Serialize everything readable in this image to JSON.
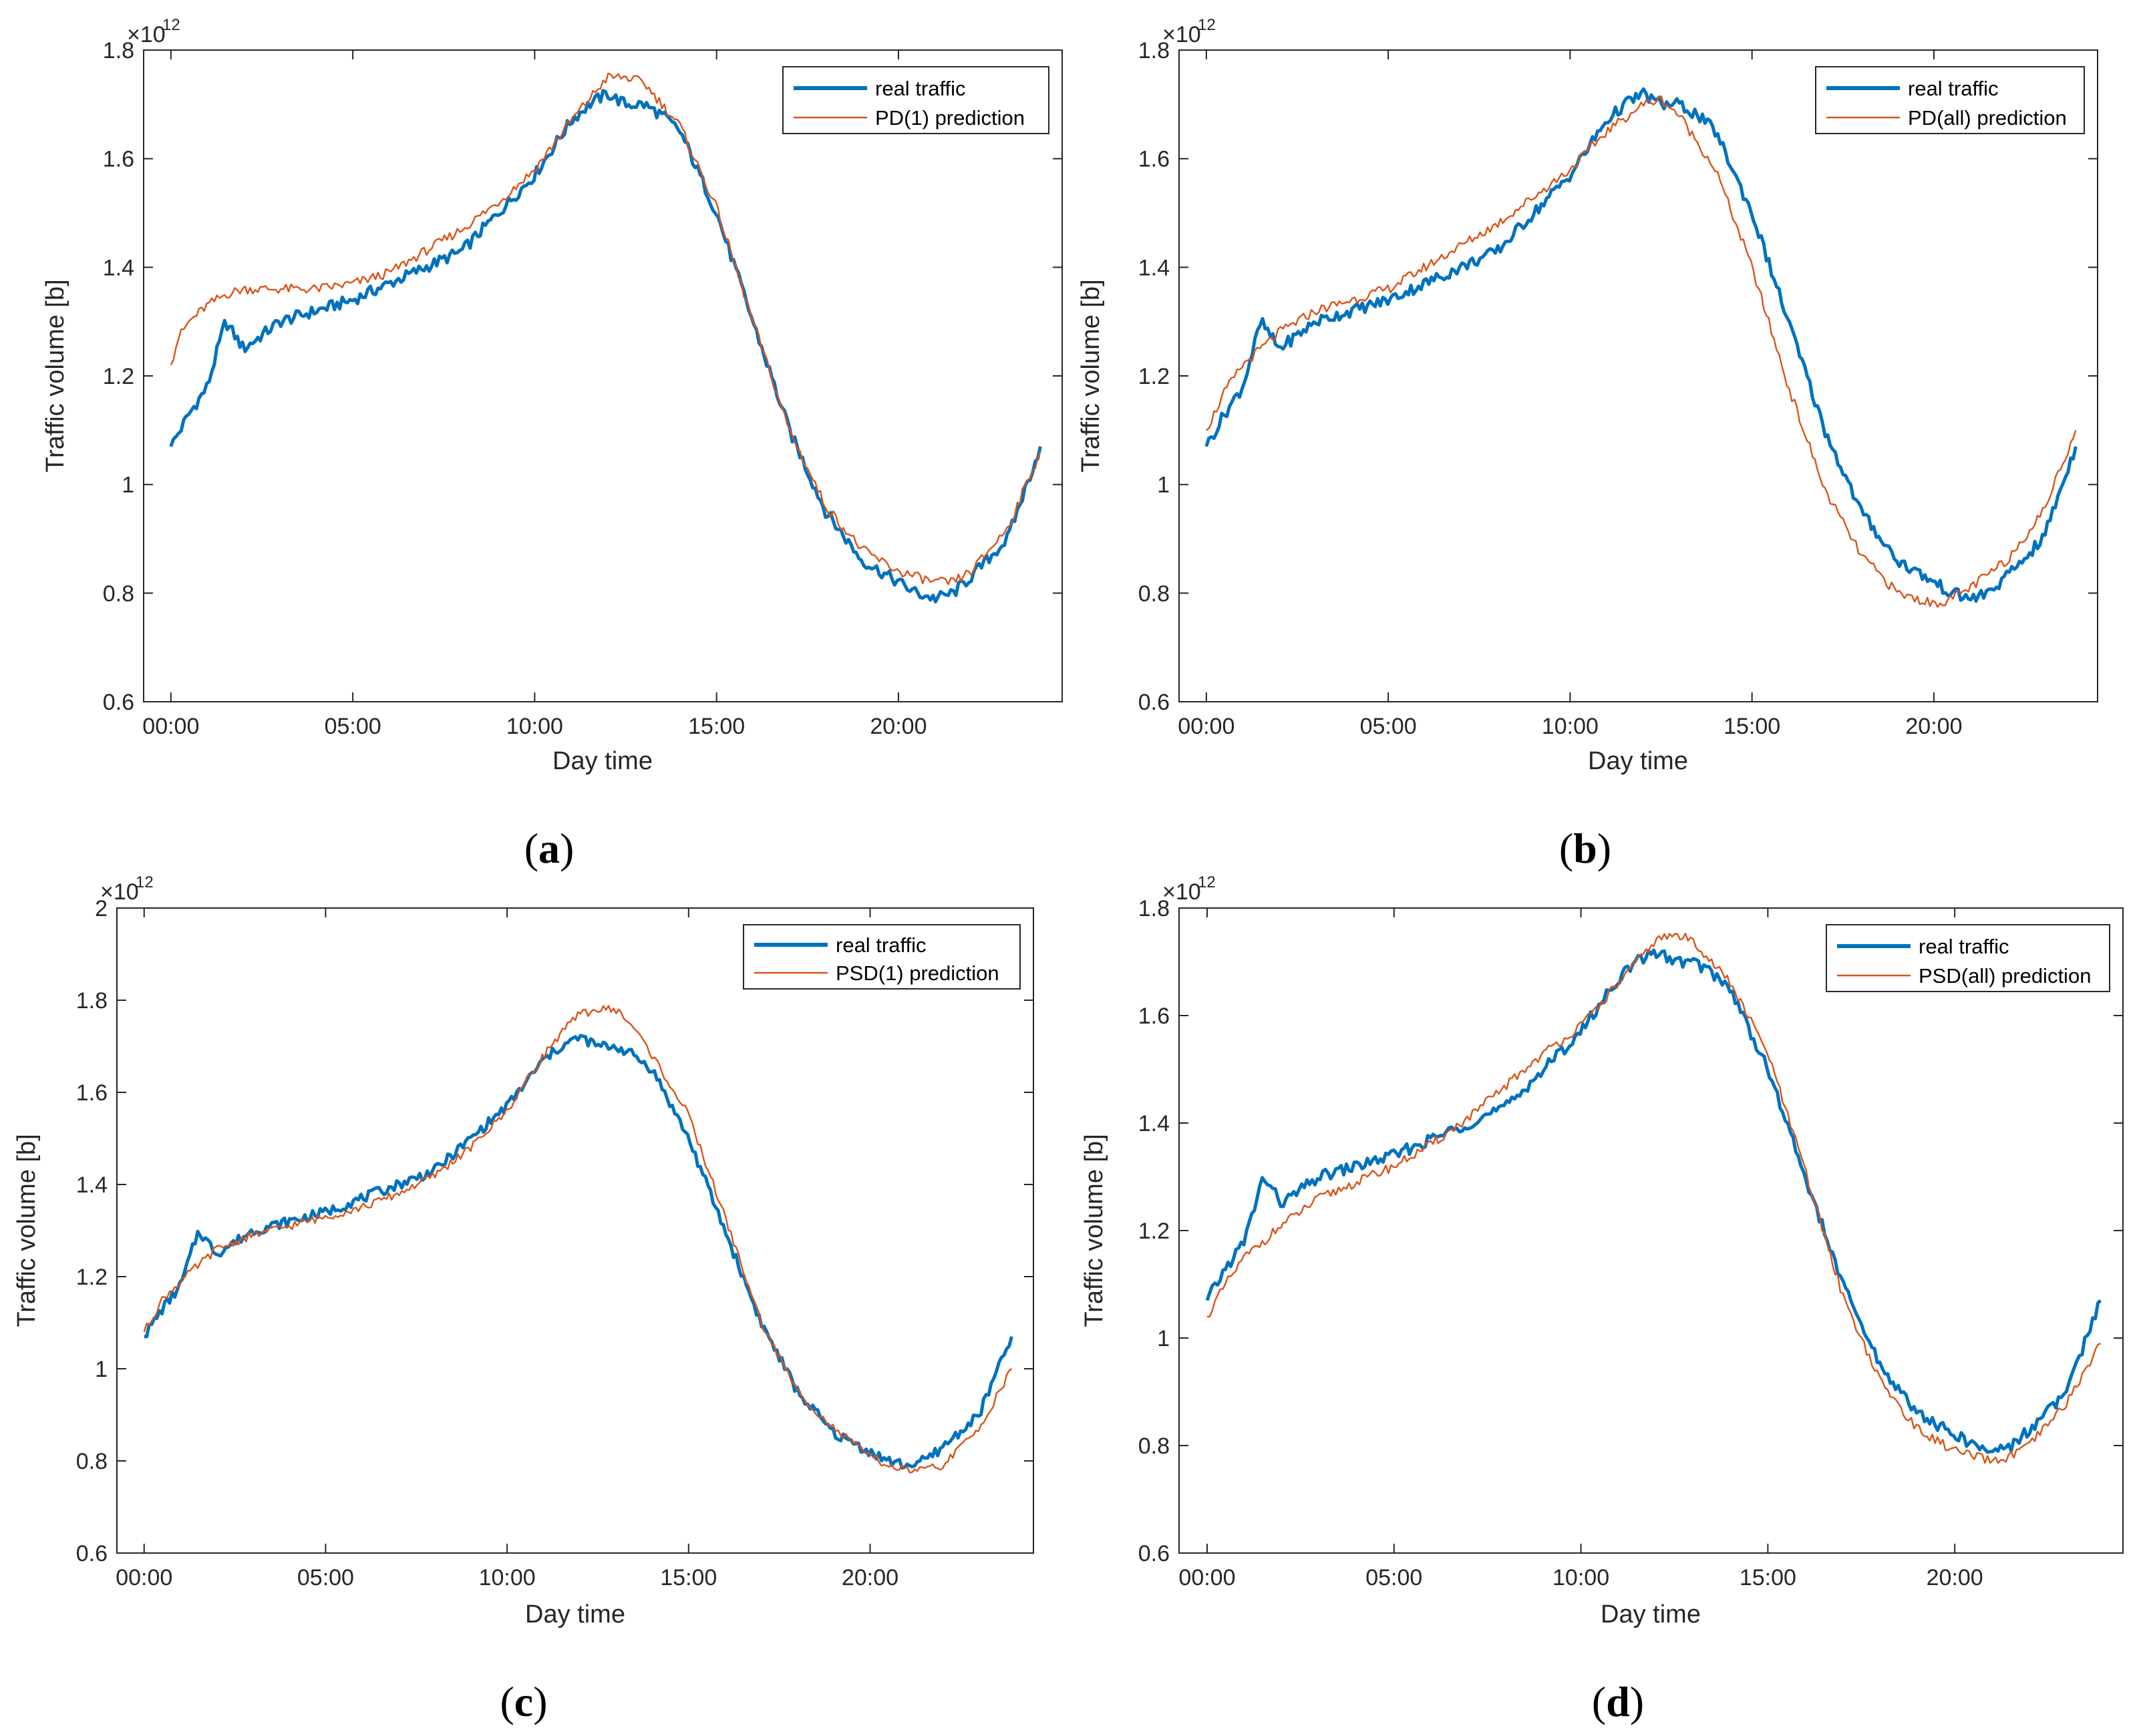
{
  "colors": {
    "real": "#0072BD",
    "prediction": "#D95319"
  },
  "chart_data": [
    {
      "type": "line",
      "panel_label": "a",
      "xlabel": "Day time",
      "ylabel": "Traffic volume [b]",
      "exponent_base": "×10",
      "exponent_power": "12",
      "xlim": [
        -0.75,
        24.5
      ],
      "ylim": [
        0.6,
        1.8
      ],
      "xticks": [
        0,
        5,
        10,
        15,
        20
      ],
      "xtick_labels": [
        "00:00",
        "05:00",
        "10:00",
        "15:00",
        "20:00"
      ],
      "yticks": [
        0.6,
        0.8,
        1,
        1.2,
        1.4,
        1.6,
        1.8
      ],
      "ytick_labels": [
        "0.6",
        "0.8",
        "1",
        "1.2",
        "1.4",
        "1.6",
        "1.8"
      ],
      "legend_position": "top-right",
      "series": [
        {
          "name": "real traffic",
          "role": "real",
          "x": [
            0,
            0.5,
            1,
            1.5,
            2,
            3,
            4,
            5,
            6,
            7,
            8,
            9,
            10,
            11,
            11.5,
            12,
            12.5,
            13,
            13.5,
            14,
            15,
            16,
            17,
            18,
            19,
            20,
            20.5,
            21,
            21.5,
            22,
            23,
            23.9
          ],
          "y": [
            1.07,
            1.13,
            1.18,
            1.3,
            1.25,
            1.3,
            1.32,
            1.34,
            1.37,
            1.4,
            1.43,
            1.5,
            1.57,
            1.67,
            1.7,
            1.72,
            1.7,
            1.7,
            1.68,
            1.65,
            1.5,
            1.3,
            1.1,
            0.95,
            0.86,
            0.82,
            0.8,
            0.79,
            0.8,
            0.83,
            0.9,
            1.07
          ]
        },
        {
          "name": "PD(1) prediction",
          "role": "prediction",
          "x": [
            0,
            0.2,
            0.5,
            1,
            1.5,
            2,
            3,
            4,
            5,
            6,
            7,
            8,
            9,
            10,
            11,
            11.5,
            12,
            12.5,
            13,
            13.5,
            14,
            15,
            16,
            17,
            18,
            19,
            20,
            20.5,
            21,
            21.5,
            22,
            23,
            23.9
          ],
          "y": [
            1.22,
            1.27,
            1.3,
            1.33,
            1.35,
            1.36,
            1.36,
            1.36,
            1.37,
            1.39,
            1.43,
            1.47,
            1.52,
            1.58,
            1.67,
            1.71,
            1.75,
            1.75,
            1.74,
            1.7,
            1.66,
            1.51,
            1.3,
            1.1,
            0.96,
            0.88,
            0.84,
            0.83,
            0.82,
            0.82,
            0.84,
            0.92,
            1.06
          ]
        }
      ]
    },
    {
      "type": "line",
      "panel_label": "b",
      "xlabel": "Day time",
      "ylabel": "Traffic volume [b]",
      "exponent_base": "×10",
      "exponent_power": "12",
      "xlim": [
        -0.75,
        24.5
      ],
      "ylim": [
        0.6,
        1.8
      ],
      "xticks": [
        0,
        5,
        10,
        15,
        20
      ],
      "xtick_labels": [
        "00:00",
        "05:00",
        "10:00",
        "15:00",
        "20:00"
      ],
      "yticks": [
        0.6,
        0.8,
        1,
        1.2,
        1.4,
        1.6,
        1.8
      ],
      "ytick_labels": [
        "0.6",
        "0.8",
        "1",
        "1.2",
        "1.4",
        "1.6",
        "1.8"
      ],
      "legend_position": "top-right",
      "series": [
        {
          "name": "real traffic",
          "role": "real",
          "x": [
            0,
            0.5,
            1,
            1.5,
            2,
            3,
            4,
            5,
            6,
            7,
            8,
            9,
            10,
            11,
            11.5,
            12,
            12.5,
            13,
            13.5,
            14,
            15,
            16,
            17,
            18,
            19,
            20,
            20.5,
            21,
            21.5,
            22,
            23,
            23.9
          ],
          "y": [
            1.07,
            1.13,
            1.18,
            1.3,
            1.25,
            1.3,
            1.32,
            1.34,
            1.37,
            1.4,
            1.43,
            1.5,
            1.57,
            1.67,
            1.7,
            1.72,
            1.7,
            1.7,
            1.68,
            1.65,
            1.5,
            1.3,
            1.1,
            0.95,
            0.86,
            0.82,
            0.8,
            0.79,
            0.8,
            0.83,
            0.9,
            1.07
          ]
        },
        {
          "name": "PD(all) prediction",
          "role": "prediction",
          "x": [
            0,
            0.5,
            1,
            2,
            3,
            4,
            5,
            6,
            7,
            8,
            9,
            10,
            11,
            12,
            12.5,
            13,
            14,
            15,
            16,
            17,
            18,
            19,
            20,
            20.5,
            21,
            22,
            23,
            23.9
          ],
          "y": [
            1.1,
            1.17,
            1.22,
            1.28,
            1.32,
            1.34,
            1.36,
            1.4,
            1.44,
            1.48,
            1.53,
            1.58,
            1.65,
            1.7,
            1.71,
            1.68,
            1.58,
            1.4,
            1.18,
            0.99,
            0.87,
            0.8,
            0.78,
            0.79,
            0.81,
            0.86,
            0.95,
            1.1
          ]
        }
      ]
    },
    {
      "type": "line",
      "panel_label": "c",
      "xlabel": "Day time",
      "ylabel": "Traffic volume [b]",
      "exponent_base": "×10",
      "exponent_power": "12",
      "xlim": [
        -0.75,
        24.5
      ],
      "ylim": [
        0.6,
        2.0
      ],
      "xticks": [
        0,
        5,
        10,
        15,
        20
      ],
      "xtick_labels": [
        "00:00",
        "05:00",
        "10:00",
        "15:00",
        "20:00"
      ],
      "yticks": [
        0.6,
        0.8,
        1,
        1.2,
        1.4,
        1.6,
        1.8,
        2
      ],
      "ytick_labels": [
        "0.6",
        "0.8",
        "1",
        "1.2",
        "1.4",
        "1.6",
        "1.8",
        "2"
      ],
      "legend_position": "top-right",
      "series": [
        {
          "name": "real traffic",
          "role": "real",
          "x": [
            0,
            0.5,
            1,
            1.5,
            2,
            3,
            4,
            5,
            6,
            7,
            8,
            9,
            10,
            11,
            11.5,
            12,
            12.5,
            13,
            13.5,
            14,
            15,
            16,
            17,
            18,
            19,
            20,
            20.5,
            21,
            21.5,
            22,
            23,
            23.9
          ],
          "y": [
            1.07,
            1.13,
            1.18,
            1.3,
            1.25,
            1.3,
            1.32,
            1.34,
            1.37,
            1.4,
            1.43,
            1.5,
            1.57,
            1.67,
            1.7,
            1.72,
            1.7,
            1.7,
            1.68,
            1.65,
            1.5,
            1.3,
            1.1,
            0.95,
            0.86,
            0.82,
            0.8,
            0.79,
            0.8,
            0.83,
            0.9,
            1.07
          ]
        },
        {
          "name": "PSD(1) prediction",
          "role": "prediction",
          "x": [
            0,
            0.5,
            1,
            2,
            3,
            4,
            5,
            6,
            7,
            8,
            9,
            10,
            11,
            11.5,
            12,
            12.5,
            13,
            13.5,
            14,
            15,
            16,
            17,
            18,
            19,
            20,
            20.5,
            21,
            21.5,
            22,
            23,
            23.9
          ],
          "y": [
            1.08,
            1.15,
            1.19,
            1.26,
            1.29,
            1.31,
            1.33,
            1.35,
            1.38,
            1.42,
            1.48,
            1.56,
            1.68,
            1.73,
            1.77,
            1.78,
            1.78,
            1.74,
            1.68,
            1.55,
            1.33,
            1.1,
            0.95,
            0.87,
            0.81,
            0.79,
            0.78,
            0.78,
            0.79,
            0.87,
            1.0
          ]
        }
      ]
    },
    {
      "type": "line",
      "panel_label": "d",
      "xlabel": "Day time",
      "ylabel": "Traffic volume [b]",
      "exponent_base": "×10",
      "exponent_power": "12",
      "xlim": [
        -0.75,
        24.5
      ],
      "ylim": [
        0.6,
        1.8
      ],
      "xticks": [
        0,
        5,
        10,
        15,
        20
      ],
      "xtick_labels": [
        "00:00",
        "05:00",
        "10:00",
        "15:00",
        "20:00"
      ],
      "yticks": [
        0.6,
        0.8,
        1,
        1.2,
        1.4,
        1.6,
        1.8
      ],
      "ytick_labels": [
        "0.6",
        "0.8",
        "1",
        "1.2",
        "1.4",
        "1.6",
        "1.8"
      ],
      "legend_position": "top-right",
      "series": [
        {
          "name": "real traffic",
          "role": "real",
          "x": [
            0,
            0.5,
            1,
            1.5,
            2,
            3,
            4,
            5,
            6,
            7,
            8,
            9,
            10,
            11,
            11.5,
            12,
            12.5,
            13,
            13.5,
            14,
            15,
            16,
            17,
            18,
            19,
            20,
            20.5,
            21,
            21.5,
            22,
            23,
            23.9
          ],
          "y": [
            1.07,
            1.13,
            1.18,
            1.3,
            1.25,
            1.3,
            1.32,
            1.34,
            1.37,
            1.4,
            1.43,
            1.5,
            1.57,
            1.67,
            1.7,
            1.72,
            1.7,
            1.7,
            1.68,
            1.65,
            1.5,
            1.3,
            1.1,
            0.95,
            0.86,
            0.82,
            0.8,
            0.79,
            0.8,
            0.83,
            0.9,
            1.07
          ]
        },
        {
          "name": "PSD(all) prediction",
          "role": "prediction",
          "x": [
            0,
            0.5,
            1,
            2,
            3,
            4,
            5,
            6,
            7,
            8,
            9,
            10,
            11,
            11.5,
            12,
            12.5,
            13,
            13.5,
            14,
            15,
            16,
            17,
            18,
            19,
            20,
            20.5,
            21,
            21.5,
            22,
            23,
            23.9
          ],
          "y": [
            1.04,
            1.1,
            1.15,
            1.21,
            1.26,
            1.29,
            1.32,
            1.36,
            1.41,
            1.47,
            1.53,
            1.58,
            1.66,
            1.7,
            1.74,
            1.75,
            1.74,
            1.7,
            1.66,
            1.53,
            1.31,
            1.08,
            0.92,
            0.83,
            0.79,
            0.78,
            0.77,
            0.78,
            0.8,
            0.88,
            0.99
          ]
        }
      ]
    }
  ]
}
